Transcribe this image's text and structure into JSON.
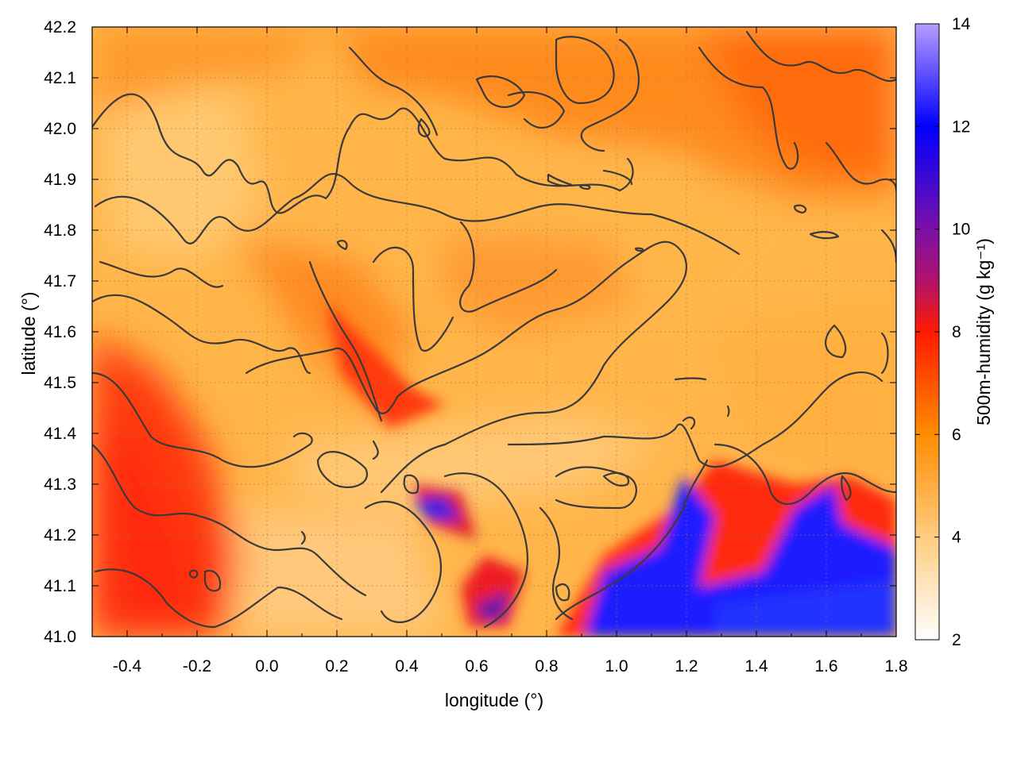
{
  "chart_data": {
    "type": "heatmap",
    "xlabel": "longitude (°)",
    "ylabel": "latitude (°)",
    "colorbar_label": "500m-humidity (g kg⁻¹)",
    "xlim": [
      -0.5,
      1.8
    ],
    "ylim": [
      41.0,
      42.2
    ],
    "clim": [
      2,
      14
    ],
    "xticks": [
      -0.4,
      -0.2,
      0.0,
      0.2,
      0.4,
      0.6,
      0.8,
      1.0,
      1.2,
      1.4,
      1.6,
      1.8
    ],
    "xtick_labels": [
      "-0.4",
      "-0.2",
      "0.0",
      "0.2",
      "0.4",
      "0.6",
      "0.8",
      "1.0",
      "1.2",
      "1.4",
      "1.6",
      "1.8"
    ],
    "yticks": [
      41.0,
      41.1,
      41.2,
      41.3,
      41.4,
      41.5,
      41.6,
      41.7,
      41.8,
      41.9,
      42.0,
      42.1,
      42.2
    ],
    "ytick_labels": [
      "41.0",
      "41.1",
      "41.2",
      "41.3",
      "41.4",
      "41.5",
      "41.6",
      "41.7",
      "41.8",
      "41.9",
      "42.0",
      "42.1",
      "42.2"
    ],
    "cbticks": [
      2,
      4,
      6,
      8,
      10,
      12,
      14
    ],
    "cbtick_labels": [
      "2",
      "4",
      "6",
      "8",
      "10",
      "12",
      "14"
    ],
    "colormap": [
      {
        "value": 2,
        "color": "#ffffff"
      },
      {
        "value": 4,
        "color": "#ffcc80"
      },
      {
        "value": 6,
        "color": "#ff8c00"
      },
      {
        "value": 8,
        "color": "#ff1a00"
      },
      {
        "value": 9,
        "color": "#b0126b"
      },
      {
        "value": 10,
        "color": "#7a10a8"
      },
      {
        "value": 12,
        "color": "#0000ff"
      },
      {
        "value": 14,
        "color": "#b79cff"
      }
    ],
    "grid": true,
    "grid_style": "dotted",
    "overlay": "black contour lines (terrain)"
  }
}
